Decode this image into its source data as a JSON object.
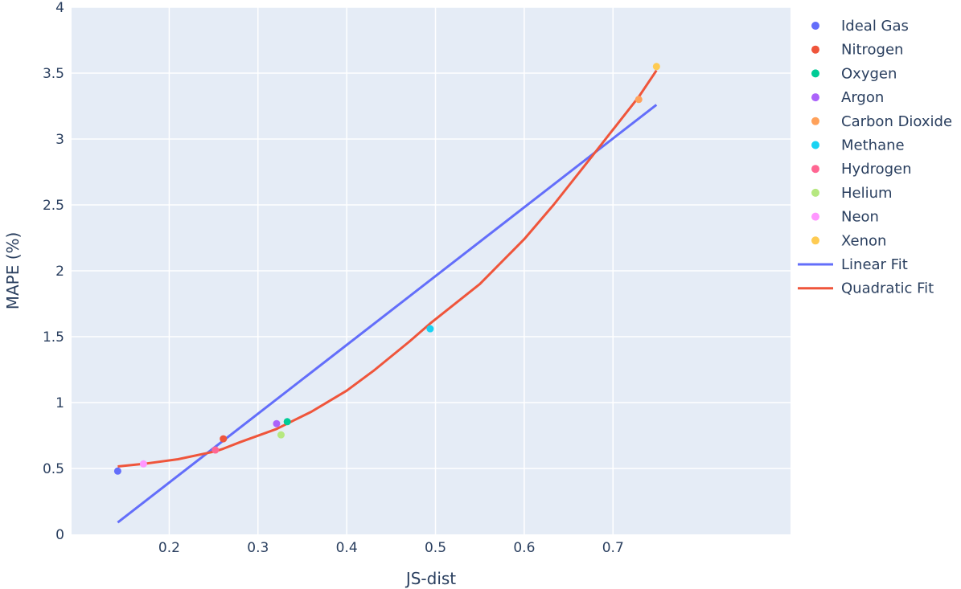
{
  "chart_data": {
    "type": "scatter",
    "xlabel": "JS-dist",
    "ylabel": "MAPE (%)",
    "xlim": [
      0.09,
      0.9
    ],
    "ylim": [
      0,
      4
    ],
    "x_ticks": [
      "0.2",
      "0.3",
      "0.4",
      "0.5",
      "0.6",
      "0.7"
    ],
    "y_ticks": [
      "0",
      "0.5",
      "1",
      "1.5",
      "2",
      "2.5",
      "3",
      "3.5",
      "4"
    ],
    "grid": true,
    "legend_position": "right",
    "series": [
      {
        "name": "Ideal Gas",
        "kind": "point",
        "color": "#636efa",
        "x": 0.142,
        "y": 0.48
      },
      {
        "name": "Nitrogen",
        "kind": "point",
        "color": "#ef553b",
        "x": 0.261,
        "y": 0.725
      },
      {
        "name": "Oxygen",
        "kind": "point",
        "color": "#00cc96",
        "x": 0.333,
        "y": 0.855
      },
      {
        "name": "Argon",
        "kind": "point",
        "color": "#ab63fa",
        "x": 0.321,
        "y": 0.84
      },
      {
        "name": "Carbon Dioxide",
        "kind": "point",
        "color": "#ffa15a",
        "x": 0.729,
        "y": 3.3
      },
      {
        "name": "Methane",
        "kind": "point",
        "color": "#19d3f3",
        "x": 0.494,
        "y": 1.56
      },
      {
        "name": "Hydrogen",
        "kind": "point",
        "color": "#ff6692",
        "x": 0.252,
        "y": 0.64
      },
      {
        "name": "Helium",
        "kind": "point",
        "color": "#b6e880",
        "x": 0.326,
        "y": 0.755
      },
      {
        "name": "Neon",
        "kind": "point",
        "color": "#ff97ff",
        "x": 0.171,
        "y": 0.535
      },
      {
        "name": "Xenon",
        "kind": "point",
        "color": "#fecb52",
        "x": 0.749,
        "y": 3.55
      }
    ],
    "fits": [
      {
        "name": "Linear Fit",
        "kind": "line",
        "color": "#636efa",
        "x": [
          0.142,
          0.749
        ],
        "y": [
          0.09,
          3.26
        ]
      },
      {
        "name": "Quadratic Fit",
        "kind": "line",
        "color": "#ef553b",
        "x": [
          0.142,
          0.171,
          0.21,
          0.252,
          0.261,
          0.28,
          0.321,
          0.333,
          0.36,
          0.4,
          0.43,
          0.47,
          0.494,
          0.55,
          0.6,
          0.633,
          0.68,
          0.729,
          0.749
        ],
        "y": [
          0.515,
          0.535,
          0.57,
          0.63,
          0.65,
          0.7,
          0.8,
          0.84,
          0.93,
          1.09,
          1.24,
          1.46,
          1.6,
          1.9,
          2.24,
          2.5,
          2.9,
          3.32,
          3.52
        ]
      }
    ]
  }
}
